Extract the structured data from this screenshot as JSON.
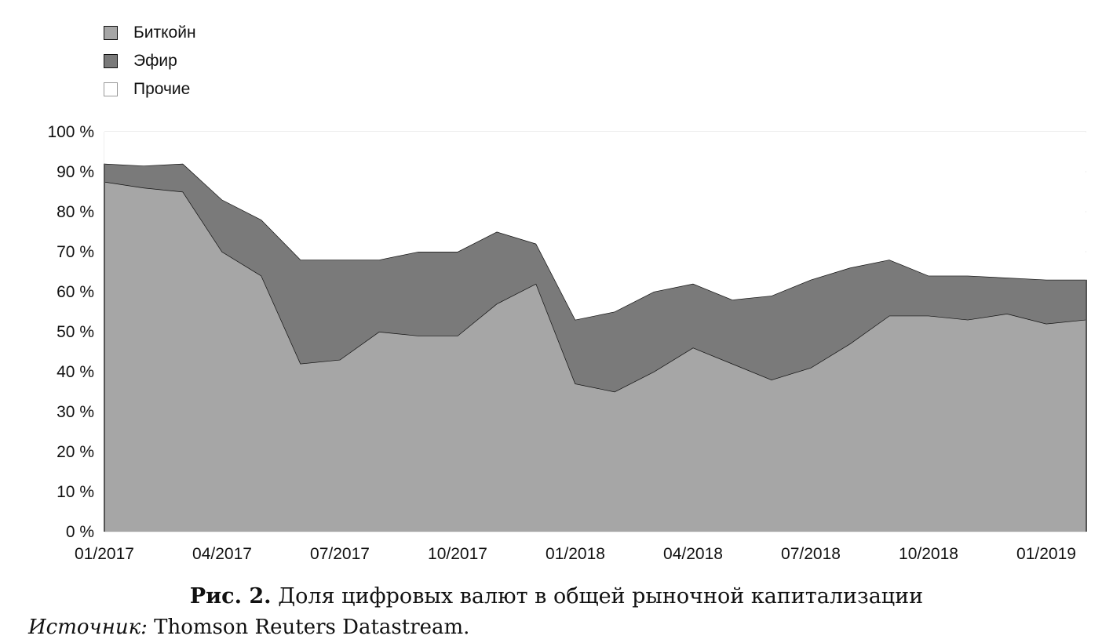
{
  "chart_data": {
    "type": "area",
    "stacked": true,
    "title": "",
    "xlabel": "",
    "ylabel": "",
    "ylim": [
      0,
      100
    ],
    "y_ticks": [
      "0 %",
      "10 %",
      "20 %",
      "30 %",
      "40 %",
      "50 %",
      "60 %",
      "70 %",
      "80 %",
      "90 %",
      "100 %"
    ],
    "x_ticks": [
      "01/2017",
      "04/2017",
      "07/2017",
      "10/2017",
      "01/2018",
      "04/2018",
      "07/2018",
      "10/2018",
      "01/2019"
    ],
    "legend_position": "top-left",
    "grid": true,
    "colors": {
      "bitcoin": "#a6a6a6",
      "ether": "#7a7a7a",
      "others": "#ffffff",
      "line": "#111111",
      "grid": "#dddddd"
    },
    "x": [
      "2017-01",
      "2017-02",
      "2017-03",
      "2017-04",
      "2017-05",
      "2017-06",
      "2017-07",
      "2017-08",
      "2017-09",
      "2017-10",
      "2017-11",
      "2017-12",
      "2018-01",
      "2018-02",
      "2018-03",
      "2018-04",
      "2018-05",
      "2018-06",
      "2018-07",
      "2018-08",
      "2018-09",
      "2018-10",
      "2018-11",
      "2018-12",
      "2019-01",
      "2019-02"
    ],
    "series": [
      {
        "name": "Биткойн",
        "values": [
          87.5,
          86,
          85,
          70,
          64,
          42,
          43,
          50,
          49,
          49,
          57,
          62,
          37,
          35,
          40,
          46,
          42,
          38,
          41,
          47,
          54,
          54,
          53,
          54.5,
          52,
          53
        ]
      },
      {
        "name": "Эфир",
        "values": [
          4.5,
          5.5,
          7,
          13,
          14,
          26,
          25,
          18,
          21,
          21,
          18,
          10,
          16,
          20,
          20,
          16,
          16,
          21,
          22,
          19,
          14,
          10,
          11,
          9,
          11,
          10
        ]
      },
      {
        "name": "Прочие",
        "values": [
          8,
          8.5,
          8,
          17,
          22,
          32,
          32,
          32,
          30,
          30,
          25,
          28,
          47,
          45,
          40,
          38,
          42,
          41,
          37,
          34,
          32,
          36,
          36,
          36.5,
          37,
          37
        ]
      }
    ]
  },
  "legend": [
    {
      "label": "Биткойн",
      "color": "#a6a6a6"
    },
    {
      "label": "Эфир",
      "color": "#7a7a7a"
    },
    {
      "label": "Прочие",
      "color": "#ffffff"
    }
  ],
  "caption": {
    "figure_label": "Рис. 2.",
    "text": "Доля цифровых валют в общей рыночной капитализации"
  },
  "source": {
    "label": "Источник:",
    "text": "Thomson Reuters Datastream."
  }
}
